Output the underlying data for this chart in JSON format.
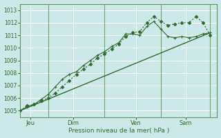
{
  "xlabel": "Pression niveau de la mer( hPa )",
  "bg_color": "#cce8e8",
  "grid_color": "#ffffff",
  "line_color": "#2d6b2d",
  "ylim": [
    1004.5,
    1013.5
  ],
  "xlim": [
    0,
    28
  ],
  "yticks": [
    1005,
    1006,
    1007,
    1008,
    1009,
    1010,
    1011,
    1012,
    1013
  ],
  "day_positions": [
    1.5,
    7.5,
    16.5,
    23.5
  ],
  "day_labels": [
    "Jeu",
    "Dim",
    "Ven",
    "Sam"
  ],
  "vline_positions": [
    4,
    12,
    20,
    27
  ],
  "line1_x": [
    0,
    1,
    2,
    3,
    4,
    5,
    6,
    7,
    8,
    9,
    10,
    11,
    12,
    13,
    14,
    15,
    16,
    17,
    18,
    19,
    20,
    21,
    22,
    23,
    24,
    25,
    26,
    27
  ],
  "line1_y": [
    1005.0,
    1005.4,
    1005.5,
    1005.8,
    1006.0,
    1006.4,
    1006.9,
    1007.4,
    1007.9,
    1008.3,
    1008.7,
    1009.2,
    1009.5,
    1009.9,
    1010.3,
    1010.9,
    1011.2,
    1011.3,
    1012.0,
    1012.5,
    1012.1,
    1011.8,
    1011.9,
    1012.0,
    1012.0,
    1012.5,
    1012.0,
    1011.0
  ],
  "line2_x": [
    0,
    1,
    2,
    3,
    4,
    5,
    6,
    7,
    8,
    9,
    10,
    11,
    12,
    13,
    14,
    15,
    16,
    17,
    18,
    19,
    20,
    21,
    22,
    23,
    24,
    25,
    26,
    27
  ],
  "line2_y": [
    1005.0,
    1005.3,
    1005.5,
    1005.9,
    1006.3,
    1006.9,
    1007.5,
    1007.9,
    1008.1,
    1008.6,
    1009.0,
    1009.4,
    1009.7,
    1010.1,
    1010.4,
    1011.1,
    1011.1,
    1011.0,
    1011.7,
    1012.1,
    1011.5,
    1010.9,
    1010.8,
    1010.9,
    1010.8,
    1010.9,
    1011.1,
    1011.2
  ],
  "line3_x": [
    0,
    27
  ],
  "line3_y": [
    1005.0,
    1011.2
  ]
}
